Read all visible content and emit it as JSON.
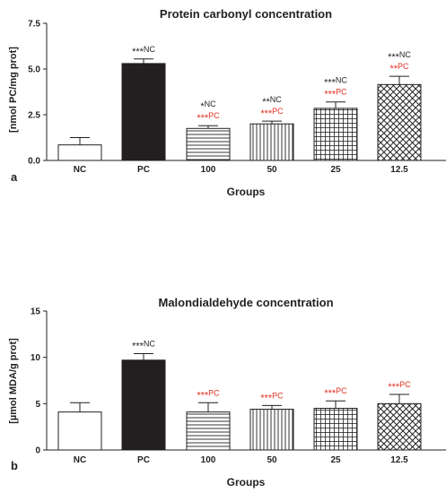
{
  "chart_data": [
    {
      "type": "bar",
      "panel_label": "a",
      "title": "Protein carbonyl concentration",
      "xlabel": "Groups",
      "ylabel": "[nmol PC/mg prot]",
      "categories": [
        "NC",
        "PC",
        "100",
        "50",
        "25",
        "12.5"
      ],
      "values": [
        0.85,
        5.3,
        1.75,
        2.0,
        2.85,
        4.15
      ],
      "errors": [
        0.4,
        0.25,
        0.15,
        0.15,
        0.35,
        0.45
      ],
      "ylim": [
        0,
        7.5
      ],
      "yticks": [
        "0.0",
        "2.5",
        "5.0",
        "7.5"
      ],
      "fills": [
        "white",
        "black",
        "hlines",
        "vlines",
        "grid",
        "crosshatch"
      ],
      "annotations": [
        {
          "category": "PC",
          "lines": [
            {
              "stars": "***",
              "text": "NC",
              "color": "#231f20"
            }
          ]
        },
        {
          "category": "100",
          "lines": [
            {
              "stars": "*",
              "text": "NC",
              "color": "#231f20"
            },
            {
              "stars": "***",
              "text": "PC",
              "color": "#e03022"
            }
          ]
        },
        {
          "category": "50",
          "lines": [
            {
              "stars": "**",
              "text": "NC",
              "color": "#231f20"
            },
            {
              "stars": "***",
              "text": "PC",
              "color": "#e03022"
            }
          ]
        },
        {
          "category": "25",
          "lines": [
            {
              "stars": "***",
              "text": "NC",
              "color": "#231f20"
            },
            {
              "stars": "***",
              "text": "PC",
              "color": "#e03022"
            }
          ]
        },
        {
          "category": "12.5",
          "lines": [
            {
              "stars": "***",
              "text": "NC",
              "color": "#231f20"
            },
            {
              "stars": "**",
              "text": "PC",
              "color": "#e03022"
            }
          ]
        }
      ]
    },
    {
      "type": "bar",
      "panel_label": "b",
      "title": "Malondialdehyde concentration",
      "xlabel": "Groups",
      "ylabel": "[µmol MDA/g prot]",
      "categories": [
        "NC",
        "PC",
        "100",
        "50",
        "25",
        "12.5"
      ],
      "values": [
        4.1,
        9.7,
        4.1,
        4.4,
        4.5,
        5.0
      ],
      "errors": [
        1.0,
        0.7,
        1.0,
        0.4,
        0.8,
        1.0
      ],
      "ylim": [
        0,
        15
      ],
      "yticks": [
        "0",
        "5",
        "10",
        "15"
      ],
      "fills": [
        "white",
        "black",
        "hlines",
        "vlines",
        "grid",
        "crosshatch"
      ],
      "annotations": [
        {
          "category": "PC",
          "lines": [
            {
              "stars": "***",
              "text": "NC",
              "color": "#231f20"
            }
          ]
        },
        {
          "category": "100",
          "lines": [
            {
              "stars": "***",
              "text": "PC",
              "color": "#e03022"
            }
          ]
        },
        {
          "category": "50",
          "lines": [
            {
              "stars": "***",
              "text": "PC",
              "color": "#e03022"
            }
          ]
        },
        {
          "category": "25",
          "lines": [
            {
              "stars": "***",
              "text": "PC",
              "color": "#e03022"
            }
          ]
        },
        {
          "category": "12.5",
          "lines": [
            {
              "stars": "***",
              "text": "PC",
              "color": "#e03022"
            }
          ]
        }
      ]
    }
  ]
}
